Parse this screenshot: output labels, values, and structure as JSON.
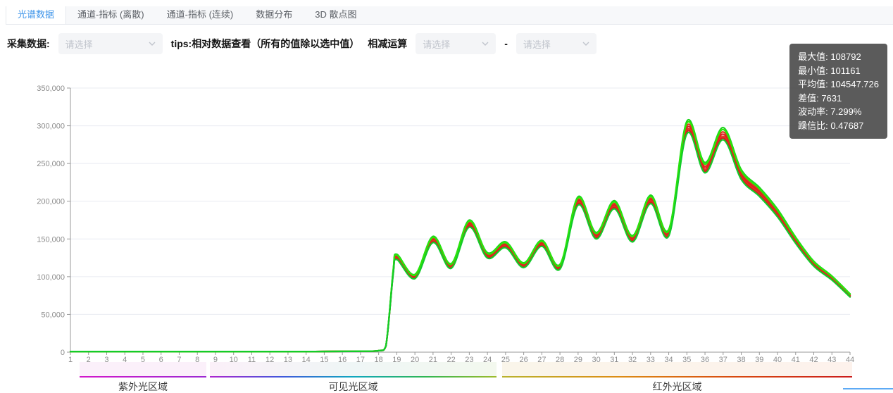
{
  "tabs": {
    "items": [
      {
        "label": "光谱数据",
        "active": true
      },
      {
        "label": "通道-指标 (离散)",
        "active": false
      },
      {
        "label": "通道-指标 (连续)",
        "active": false
      },
      {
        "label": "数据分布",
        "active": false
      },
      {
        "label": "3D 散点图",
        "active": false
      }
    ]
  },
  "controls": {
    "collect_label": "采集数据:",
    "select1_placeholder": "请选择",
    "tips": "tips:相对数据查看（所有的值除以选中值）",
    "subtract_label": "相减运算",
    "select2_placeholder": "请选择",
    "dash": "-",
    "select3_placeholder": "请选择"
  },
  "stats": {
    "bg": "#4d4d4d",
    "items": [
      {
        "label": "最大值:",
        "value": "108792"
      },
      {
        "label": "最小值:",
        "value": "101161"
      },
      {
        "label": "平均值:",
        "value": "104547.726"
      },
      {
        "label": "差值:",
        "value": "7631"
      },
      {
        "label": "波动率:",
        "value": "7.299%"
      },
      {
        "label": "躁信比:",
        "value": "0.47687"
      }
    ]
  },
  "chart_data": {
    "type": "line",
    "title": "",
    "xlabel": "",
    "ylabel": "",
    "xlim": [
      1,
      44
    ],
    "ylim": [
      0,
      350000
    ],
    "grid": true,
    "legend": "none",
    "x_ticks": [
      1,
      2,
      3,
      4,
      5,
      6,
      7,
      8,
      9,
      10,
      11,
      12,
      13,
      14,
      15,
      16,
      17,
      18,
      19,
      20,
      21,
      22,
      23,
      24,
      25,
      26,
      27,
      28,
      29,
      30,
      31,
      32,
      33,
      34,
      35,
      36,
      37,
      38,
      39,
      40,
      41,
      42,
      43,
      44
    ],
    "y_ticks": {
      "values": [
        0,
        50000,
        100000,
        150000,
        200000,
        250000,
        300000,
        350000
      ],
      "labels": [
        "0",
        "50,000",
        "100,000",
        "150,000",
        "200,000",
        "250,000",
        "300,000",
        "350,000"
      ]
    },
    "x": [
      1,
      2,
      3,
      4,
      5,
      6,
      7,
      8,
      9,
      10,
      11,
      12,
      13,
      14,
      15,
      16,
      17,
      18,
      18.4,
      18.8,
      19,
      20,
      21,
      22,
      23,
      24,
      25,
      26,
      27,
      28,
      29,
      30,
      31,
      32,
      33,
      34,
      35,
      36,
      37,
      38,
      39,
      40,
      41,
      42,
      43,
      44
    ],
    "values": [
      800,
      800,
      800,
      800,
      800,
      800,
      800,
      800,
      800,
      800,
      800,
      800,
      800,
      800,
      900,
      1000,
      1200,
      2000,
      8000,
      105000,
      126000,
      100000,
      149000,
      114000,
      170000,
      128000,
      142000,
      115000,
      144000,
      113000,
      200000,
      154000,
      195000,
      150000,
      202000,
      158000,
      297000,
      244000,
      289000,
      235000,
      212000,
      184000,
      148000,
      117000,
      98000,
      75000
    ],
    "series_style": [
      {
        "name": "red-upper",
        "color": "#e32c1e",
        "scale": 1.01
      },
      {
        "name": "red-mid",
        "color": "#d92121",
        "scale": 1.0
      },
      {
        "name": "red-lower",
        "color": "#e8331c",
        "scale": 0.99
      },
      {
        "name": "red-bottom",
        "color": "#cf1d1d",
        "scale": 0.982
      },
      {
        "name": "green-top",
        "color": "#1bd41b",
        "scale": 1.03
      },
      {
        "name": "green-upper",
        "color": "#2ce607",
        "scale": 1.021
      },
      {
        "name": "green-bottom",
        "color": "#12cc2a",
        "scale": 0.974
      }
    ],
    "regions": [
      {
        "label": "紫外光区域",
        "x_start": 1,
        "x_end": 8,
        "line_colors": [
          "#d317cb",
          "#9c2ad2"
        ],
        "bg_colors": [
          "#fbf0fa"
        ]
      },
      {
        "label": "可见光区域",
        "x_start": 9,
        "x_end": 24,
        "line_colors": [
          "#ae25cf",
          "#4158dc",
          "#10a8c0",
          "#2fb753",
          "#9fbc2c"
        ],
        "bg_colors": [
          "#fbf0f8",
          "#eff6f6",
          "#f3f8ee"
        ]
      },
      {
        "label": "红外光区域",
        "x_start": 25,
        "x_end": 44,
        "line_colors": [
          "#bab32e",
          "#dd8d14",
          "#d8490f",
          "#cb1b1b"
        ],
        "bg_colors": [
          "#faf5ea",
          "#fdf2ec"
        ]
      }
    ],
    "axis_color": "#999999",
    "grid_color": "#e9ebf2",
    "tick_label_color": "#8c8c8c"
  },
  "footer": {
    "accent_line_color": "#5daaf5"
  }
}
